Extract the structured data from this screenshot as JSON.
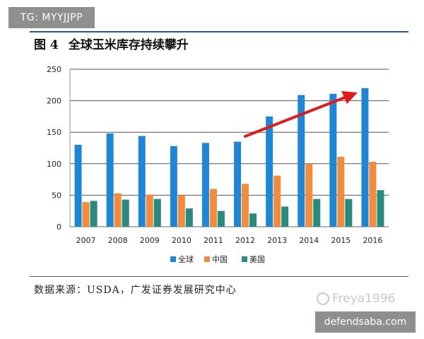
{
  "overlay": {
    "tg_label": "TG: MYYJJPP",
    "watermark": "Freya1996",
    "site_label": "defendsaba.com"
  },
  "figure": {
    "number": "图 4",
    "title": "全球玉米库存持续攀升",
    "source": "数据来源：USDA，广发证券发展研究中心"
  },
  "colors": {
    "global": "#1f86d6",
    "china": "#f28b3c",
    "usa": "#2a8a7e",
    "arrow": "#e01b1b"
  },
  "chart_data": {
    "type": "bar",
    "categories": [
      "2007",
      "2008",
      "2009",
      "2010",
      "2011",
      "2012",
      "2013",
      "2014",
      "2015",
      "2016"
    ],
    "series": [
      {
        "name": "全球",
        "color": "#1f86d6",
        "values": [
          130,
          148,
          144,
          128,
          133,
          135,
          175,
          209,
          211,
          220
        ]
      },
      {
        "name": "中国",
        "color": "#f28b3c",
        "values": [
          39,
          53,
          51,
          50,
          60,
          68,
          81,
          100,
          111,
          103
        ]
      },
      {
        "name": "美国",
        "color": "#2a8a7e",
        "values": [
          41,
          43,
          44,
          29,
          25,
          21,
          32,
          44,
          44,
          58
        ]
      }
    ],
    "yticks": [
      0,
      50,
      100,
      150,
      200,
      250
    ],
    "ylim": [
      0,
      250
    ],
    "grid": true,
    "legend_position": "bottom",
    "annotation": "upward-trend-arrow"
  }
}
